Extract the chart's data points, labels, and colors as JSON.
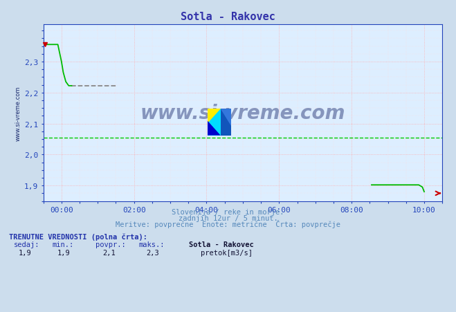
{
  "title": "Sotla - Rakovec",
  "title_color": "#3333aa",
  "bg_color": "#ccdded",
  "plot_bg_color": "#ddeeff",
  "grid_major_color": "#ffaaaa",
  "grid_minor_color": "#ffdddd",
  "axis_color": "#2244bb",
  "xmin": -0.5,
  "xmax": 10.5,
  "ymin": 1.85,
  "ymax": 2.42,
  "yticks": [
    1.9,
    2.0,
    2.1,
    2.2,
    2.3
  ],
  "xtick_labels": [
    "00:00",
    "02:00",
    "04:00",
    "06:00",
    "08:00",
    "10:00"
  ],
  "xtick_positions": [
    0,
    2,
    4,
    6,
    8,
    10
  ],
  "line_color": "#00bb00",
  "dashed_line_color": "#888888",
  "avg_line_color": "#00cc00",
  "avg_line_y": 2.055,
  "subtitle1": "Slovenija / reke in morje.",
  "subtitle2": "zadnjih 12ur / 5 minut.",
  "subtitle3": "Meritve: povprečne  Enote: metrične  Črta: povprečje",
  "footer_label1": "TRENUTNE VREDNOSTI (polna črta):",
  "footer_cols": [
    "sedaj:",
    "min.:",
    "povpr.:",
    "maks.:",
    "Sotla - Rakovec"
  ],
  "footer_vals": [
    "1,9",
    "1,9",
    "2,1",
    "2,3",
    "pretok[m3/s]"
  ],
  "legend_color": "#00cc00",
  "watermark_text": "www.si-vreme.com",
  "watermark_color": "#1a2a6e",
  "watermark_alpha": 0.45
}
